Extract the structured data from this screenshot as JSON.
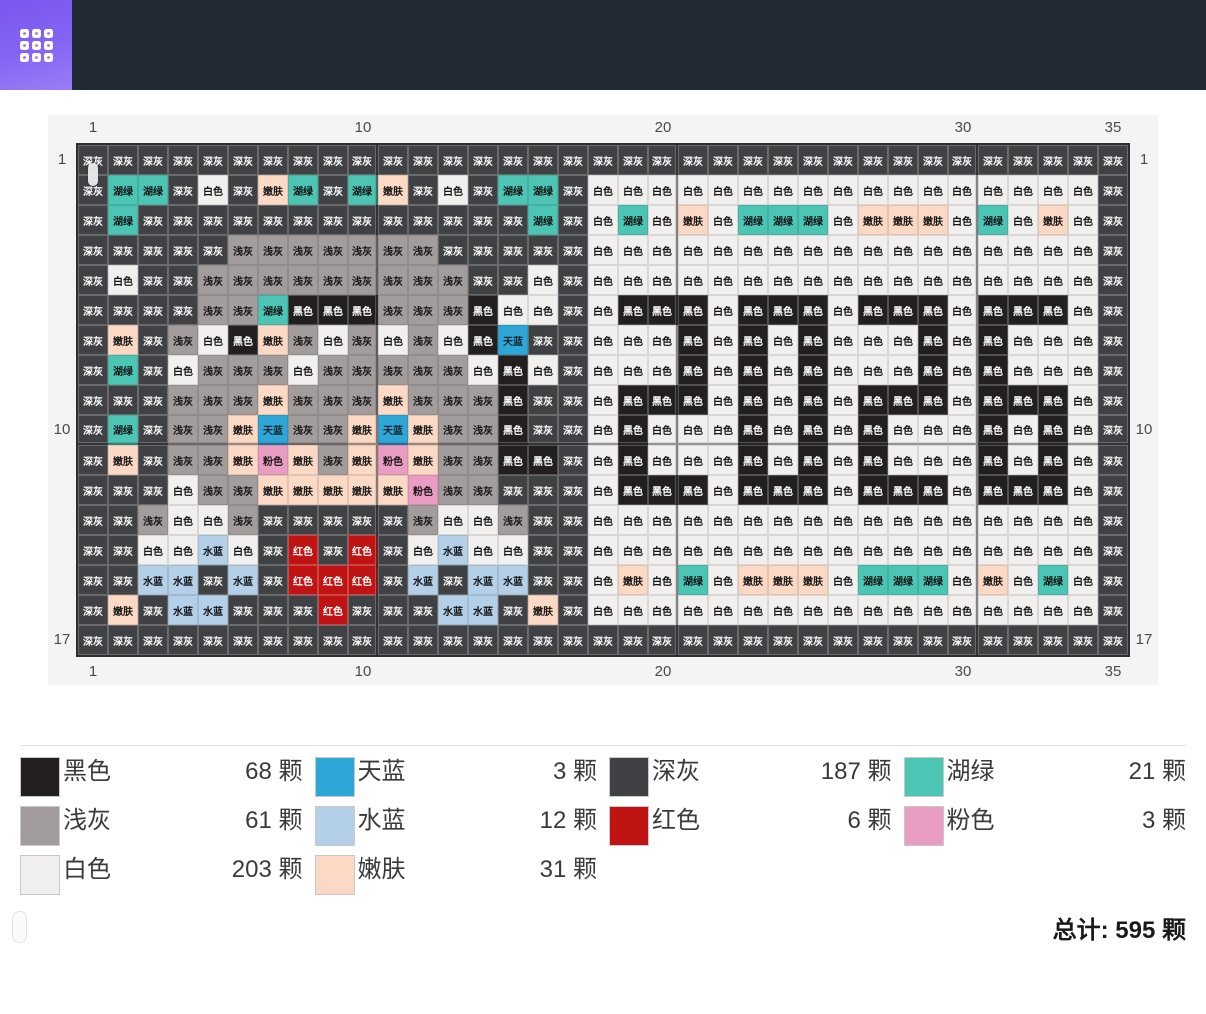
{
  "board": {
    "colors": {
      "D": {
        "label": "深灰",
        "bg": "#404144",
        "fg": "#ffffff"
      },
      "Q": {
        "label": "浅灰",
        "bg": "#a29c9c",
        "fg": "#141414"
      },
      "W": {
        "label": "白色",
        "bg": "#f2f0ef",
        "fg": "#141414"
      },
      "B": {
        "label": "黑色",
        "bg": "#231f1f",
        "fg": "#ffffff"
      },
      "H": {
        "label": "湖绿",
        "bg": "#4cc5b4",
        "fg": "#141414"
      },
      "N": {
        "label": "嫩肤",
        "bg": "#fcd9c5",
        "fg": "#141414"
      },
      "T": {
        "label": "天蓝",
        "bg": "#2ea6d8",
        "fg": "#12262e"
      },
      "S": {
        "label": "水蓝",
        "bg": "#b4d0e8",
        "fg": "#141414"
      },
      "R": {
        "label": "红色",
        "bg": "#c01313",
        "fg": "#ffffff"
      },
      "P": {
        "label": "粉色",
        "bg": "#ea9dc3",
        "fg": "#141414"
      }
    },
    "rows": [
      "DDDDDDDDDDDDDDDDDDDDDDDDDDDDDDDDDDD",
      "DHHDWDNHDHNDWDHHDWWWWWWWWWWWWWWWWWD",
      "DHDDDDDDDDDDDDDHDWHWNWHHHWNNNWHWNWD",
      "DDDDDQQQQQQQDDDDDWWWWWWWWWWWWWWWWWD",
      "DWDDQQQQQQQQQDDWDWWWWWWWWWWWWWWWWWD",
      "DDDDQQHBBBQQQBWWDWBBBWBBBWBBBWBBBWD",
      "DNDQWBNQWQWQWBTDDWWWBWBWBWWWBWBWWWD",
      "DHDWQQQWQQQQQWBWDWWWBWBWBWWWBWBWWWD",
      "DDDQQQNQQQNQQQBDDWBBBWBWBWBBBWBBBWD",
      "DHDQQNTQQNTNQQBDDWBWWWBWBWBWWWBWBWD",
      "DNDQQNPNQNPNQQBBDWBWWWBWBWBWWWBWBWD",
      "DDDWQQNNNNNPQQDDDWBBBWBBBWBBBWBBBWD",
      "DDQWWQDDDDDQWWQDDWWWWWWWWWWWWWWWWWD",
      "DDWWSWDRDRDWSWWDDWWWWWWWWWWWWWWWWWD",
      "DDSSDSDRRRDSDSSDDWNWHWNNNWHHHWNWHWD",
      "DNDSSDDDRDDDSSDNDWWWWWWWWWWWWWWWWWD",
      "DDDDDDDDDDDDDDDDDDDDDDDDDDDDDDDDDDD"
    ],
    "col_labels": [
      {
        "text": "1",
        "col": 1
      },
      {
        "text": "10",
        "col": 10
      },
      {
        "text": "20",
        "col": 20
      },
      {
        "text": "30",
        "col": 30
      },
      {
        "text": "35",
        "col": 35
      }
    ],
    "row_labels": [
      {
        "text": "1",
        "row": 1
      },
      {
        "text": "10",
        "row": 10
      },
      {
        "text": "17",
        "row": 17
      }
    ],
    "thick_line_after_cols": [
      10,
      20,
      30
    ],
    "thick_line_after_rows": [
      10
    ]
  },
  "legend": {
    "items": [
      {
        "code": "B",
        "name": "黑色",
        "count": 68,
        "count_label": "68 颗"
      },
      {
        "code": "T",
        "name": "天蓝",
        "count": 3,
        "count_label": "3 颗"
      },
      {
        "code": "D",
        "name": "深灰",
        "count": 187,
        "count_label": "187 颗"
      },
      {
        "code": "H",
        "name": "湖绿",
        "count": 21,
        "count_label": "21 颗"
      },
      {
        "code": "Q",
        "name": "浅灰",
        "count": 61,
        "count_label": "61 颗"
      },
      {
        "code": "S",
        "name": "水蓝",
        "count": 12,
        "count_label": "12 颗"
      },
      {
        "code": "R",
        "name": "红色",
        "count": 6,
        "count_label": "6 颗"
      },
      {
        "code": "P",
        "name": "粉色",
        "count": 3,
        "count_label": "3 颗"
      },
      {
        "code": "W",
        "name": "白色",
        "count": 203,
        "count_label": "203 颗"
      },
      {
        "code": "N",
        "name": "嫩肤",
        "count": 31,
        "count_label": "31 颗"
      }
    ],
    "total_label": "总计: 595 颗"
  },
  "theme": {
    "topbar_bg": "#222a36",
    "tile_purple": "#8565f3",
    "board_bg": "#f4f4f5",
    "grid_border": "#2d2d30"
  }
}
